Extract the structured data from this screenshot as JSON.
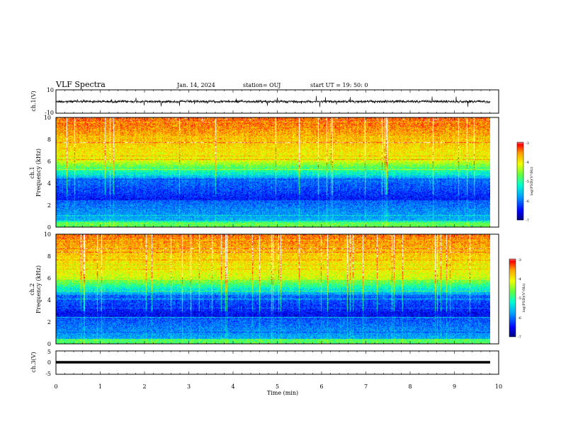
{
  "header": {
    "title": "VLF Spectra",
    "date": "Jan. 14, 2024",
    "station": "station= OUJ",
    "start": "start UT = 19: 50: 0"
  },
  "chart_data": [
    {
      "type": "line",
      "name": "ch.1 waveform",
      "ylabel": "ch.1(V)",
      "ylim": [
        -10,
        10
      ],
      "yticks": [
        "10",
        "-10"
      ],
      "xlim": [
        0,
        10
      ],
      "baseline": 0
    },
    {
      "type": "heatmap",
      "name": "ch.1 spectrogram",
      "ylabel": "ch.1 Frequency (kHz)",
      "ylabel_top": "ch.1",
      "ylabel_main": "Frequency (kHz)",
      "ylim": [
        0,
        10
      ],
      "yticks": [
        "0",
        "2",
        "4",
        "6",
        "8",
        "10"
      ],
      "xlim": [
        0,
        9.8
      ],
      "colorbar": {
        "label": "log(PSD)(V^2/Hz)",
        "range": [
          -7,
          -3
        ],
        "ticks": [
          "-3",
          "-4",
          "-5",
          "-6",
          "-7"
        ]
      }
    },
    {
      "type": "heatmap",
      "name": "ch.2 spectrogram",
      "ylabel": "ch.2 Frequency (kHz)",
      "ylabel_top": "ch.2",
      "ylabel_main": "Frequency (kHz)",
      "ylim": [
        0,
        10
      ],
      "yticks": [
        "0",
        "2",
        "4",
        "6",
        "8",
        "10"
      ],
      "xlim": [
        0,
        9.8
      ],
      "colorbar": {
        "label": "log(PSD)(V^2/Hz)",
        "range": [
          -7,
          -3
        ],
        "ticks": [
          "-3",
          "-4",
          "-5",
          "-6",
          "-7"
        ]
      }
    },
    {
      "type": "line",
      "name": "ch.3 waveform",
      "ylabel": "ch.3(V)",
      "ylim": [
        -5,
        5
      ],
      "yticks": [
        "5",
        "0",
        "-5"
      ],
      "xlim": [
        0,
        10
      ],
      "baseline": -0.5
    }
  ],
  "xaxis": {
    "label": "Time (min)",
    "ticks": [
      "0",
      "1",
      "2",
      "3",
      "4",
      "5",
      "6",
      "7",
      "8",
      "9",
      "10"
    ]
  },
  "colors": {
    "trace": "#000000",
    "colormap": [
      "#000080",
      "#0000ff",
      "#00a0ff",
      "#00ffd0",
      "#60ff40",
      "#f0ff00",
      "#ffa000",
      "#ff0000",
      "#ffffff"
    ]
  }
}
